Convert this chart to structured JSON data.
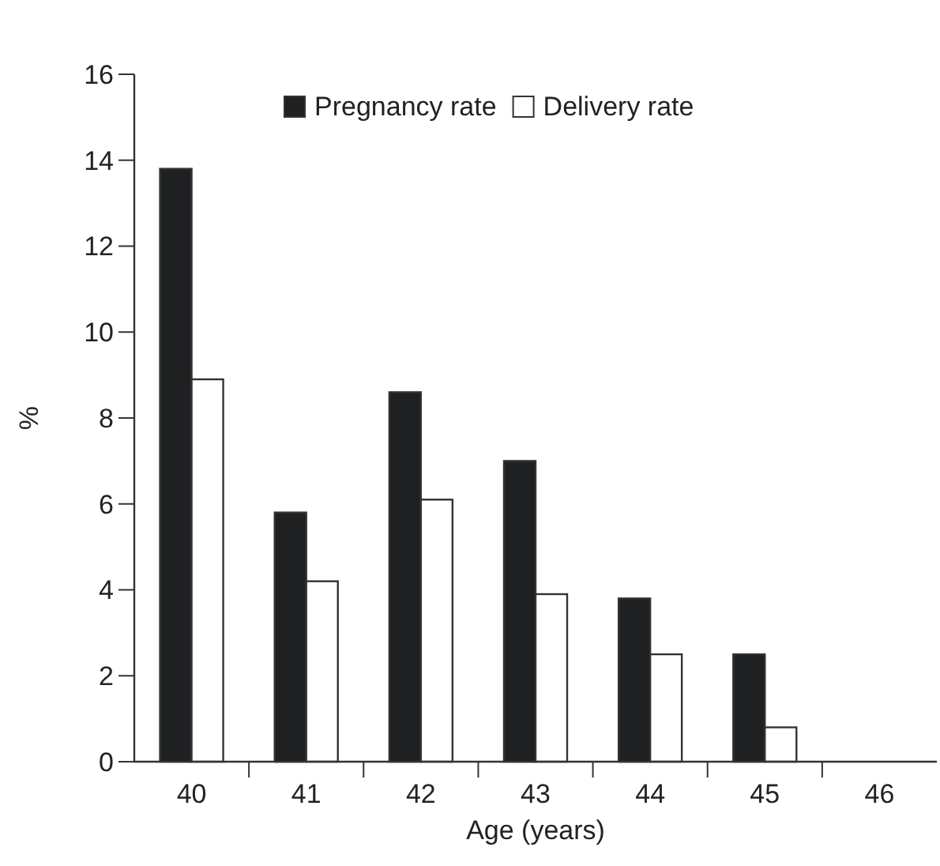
{
  "chart_data": {
    "type": "bar",
    "xlabel": "Age (years)",
    "ylabel": "%",
    "categories": [
      "40",
      "41",
      "42",
      "43",
      "44",
      "45",
      "46"
    ],
    "series": [
      {
        "name": "Pregnancy rate",
        "color": "#1f2022",
        "values": [
          13.8,
          5.8,
          8.6,
          7.0,
          3.8,
          2.5,
          0
        ]
      },
      {
        "name": "Delivery rate",
        "color": "#ffffff",
        "values": [
          8.9,
          4.2,
          6.1,
          3.9,
          2.5,
          0.8,
          0
        ]
      }
    ],
    "ylim": [
      0,
      16
    ],
    "yticks": [
      0,
      2,
      4,
      6,
      8,
      10,
      12,
      14,
      16
    ],
    "grid": false,
    "legend": "top"
  }
}
